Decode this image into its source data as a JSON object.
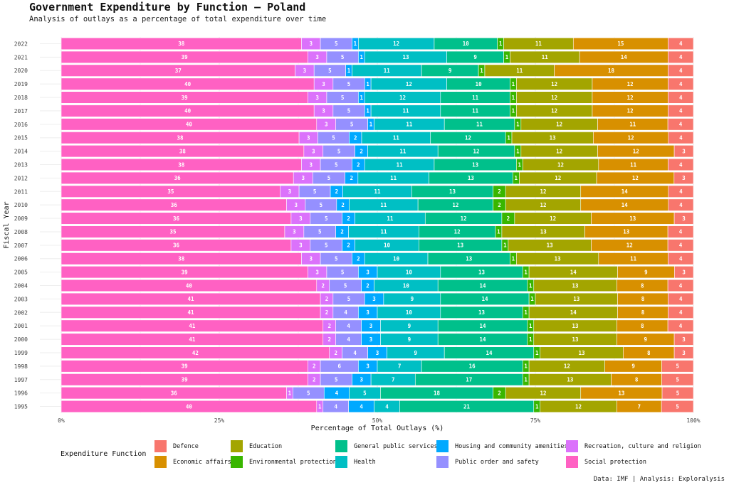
{
  "chart_data": {
    "type": "bar",
    "orientation": "horizontal",
    "stacked": true,
    "title": "Government Expenditure by Function — Poland",
    "subtitle": "Analysis of outlays as a percentage of total expenditure over time",
    "xlabel": "Percentage of Total Outlays (%)",
    "ylabel": "Fiscal Year",
    "xlim": [
      0,
      100
    ],
    "xticks": [
      "0%",
      "25%",
      "50%",
      "75%",
      "100%"
    ],
    "caption": "Data: IMF | Analysis: Exploralysis",
    "legend_title": "Expenditure Function",
    "legend_position": "bottom",
    "grid": true,
    "categories": [
      "2022",
      "2021",
      "2020",
      "2019",
      "2018",
      "2017",
      "2016",
      "2015",
      "2014",
      "2013",
      "2012",
      "2011",
      "2010",
      "2009",
      "2008",
      "2007",
      "2006",
      "2005",
      "2004",
      "2003",
      "2002",
      "2001",
      "2000",
      "1999",
      "1998",
      "1997",
      "1996",
      "1995"
    ],
    "series": [
      {
        "name": "Social protection",
        "color": "#FF61C3",
        "values": [
          38,
          39,
          37,
          40,
          39,
          40,
          40,
          38,
          38,
          38,
          36,
          35,
          36,
          36,
          35,
          36,
          38,
          39,
          40,
          41,
          41,
          41,
          41,
          42,
          39,
          39,
          36,
          40
        ]
      },
      {
        "name": "Recreation, culture and religion",
        "color": "#DB72FB",
        "values": [
          3,
          3,
          3,
          3,
          3,
          3,
          3,
          3,
          3,
          3,
          3,
          3,
          3,
          3,
          3,
          3,
          3,
          3,
          2,
          2,
          2,
          2,
          2,
          2,
          2,
          2,
          1,
          1
        ]
      },
      {
        "name": "Public order and safety",
        "color": "#9590FF",
        "values": [
          5,
          5,
          5,
          5,
          5,
          5,
          5,
          5,
          5,
          5,
          5,
          5,
          5,
          5,
          5,
          5,
          5,
          5,
          5,
          5,
          4,
          4,
          4,
          4,
          6,
          5,
          5,
          4
        ]
      },
      {
        "name": "Housing and community amenities",
        "color": "#00A9FF",
        "values": [
          1,
          1,
          1,
          1,
          1,
          1,
          1,
          2,
          2,
          2,
          2,
          2,
          2,
          2,
          2,
          2,
          2,
          3,
          2,
          3,
          3,
          3,
          3,
          3,
          3,
          3,
          4,
          4
        ]
      },
      {
        "name": "Health",
        "color": "#00BFC4",
        "values": [
          12,
          13,
          11,
          12,
          12,
          11,
          11,
          11,
          11,
          11,
          11,
          11,
          11,
          11,
          11,
          10,
          10,
          10,
          10,
          9,
          10,
          9,
          9,
          9,
          7,
          7,
          5,
          4
        ]
      },
      {
        "name": "General public services",
        "color": "#00C08B",
        "values": [
          10,
          9,
          9,
          10,
          11,
          11,
          11,
          12,
          12,
          13,
          13,
          13,
          12,
          12,
          12,
          13,
          13,
          13,
          14,
          14,
          13,
          14,
          14,
          14,
          16,
          17,
          18,
          21
        ]
      },
      {
        "name": "Environmental protection",
        "color": "#39B600",
        "values": [
          1,
          1,
          1,
          1,
          1,
          1,
          1,
          1,
          1,
          1,
          1,
          2,
          2,
          2,
          1,
          1,
          1,
          1,
          1,
          1,
          1,
          1,
          1,
          1,
          1,
          1,
          2,
          1
        ]
      },
      {
        "name": "Education",
        "color": "#A3A500",
        "values": [
          11,
          11,
          11,
          12,
          12,
          12,
          12,
          13,
          12,
          12,
          12,
          12,
          12,
          12,
          13,
          13,
          13,
          14,
          13,
          13,
          14,
          13,
          13,
          13,
          12,
          13,
          12,
          12
        ]
      },
      {
        "name": "Economic affairs",
        "color": "#D89000",
        "values": [
          15,
          14,
          18,
          12,
          12,
          12,
          11,
          12,
          12,
          11,
          12,
          14,
          14,
          13,
          13,
          12,
          11,
          9,
          8,
          8,
          8,
          8,
          9,
          8,
          9,
          8,
          13,
          7
        ]
      },
      {
        "name": "Defence",
        "color": "#F8766D",
        "values": [
          4,
          4,
          4,
          4,
          4,
          4,
          4,
          4,
          3,
          4,
          3,
          4,
          4,
          3,
          4,
          4,
          4,
          3,
          4,
          4,
          4,
          4,
          3,
          3,
          5,
          5,
          5,
          5
        ]
      }
    ],
    "legend_order": [
      "Defence",
      "Education",
      "General public services",
      "Housing and community amenities",
      "Recreation, culture and religion",
      "Economic affairs",
      "Environmental protection",
      "Health",
      "Public order and safety",
      "Social protection"
    ]
  }
}
